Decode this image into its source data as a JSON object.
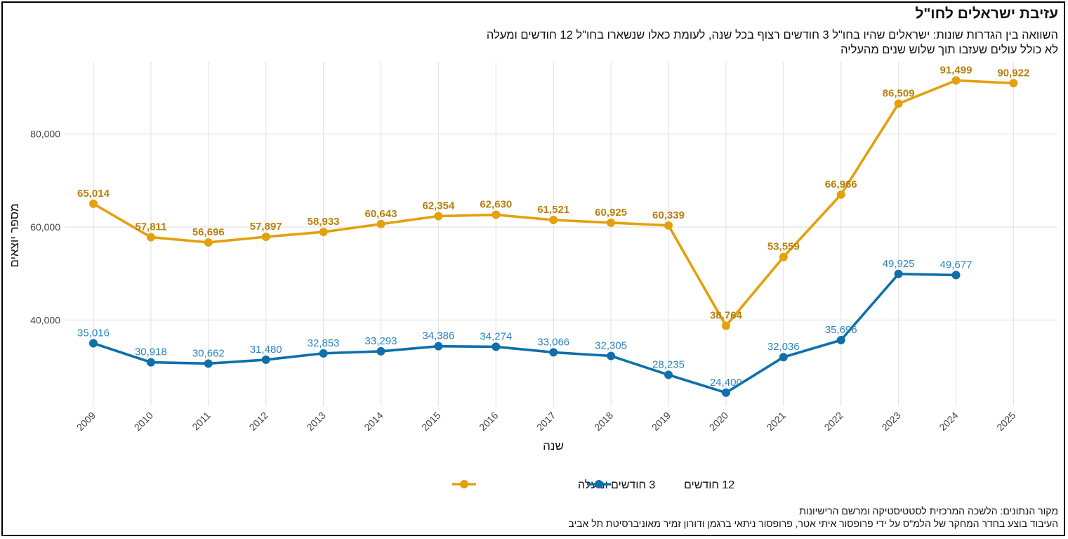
{
  "chart_data": {
    "type": "line",
    "title": "עזיבת ישראלים לחו\"ל",
    "subtitle": [
      "השוואה בין הגדרות שונות: ישראלים שהיו בחו\"ל 3 חודשים רצוף בכל שנה, לעומת כאלו שנשארו בחו\"ל 12 חודשים ומעלה",
      "לא כולל עולים שעזבו תוך שלוש שנים מהעליה"
    ],
    "xlabel": "שנה",
    "ylabel": "מספר יוצאים",
    "x": [
      2009,
      2010,
      2011,
      2012,
      2013,
      2014,
      2015,
      2016,
      2017,
      2018,
      2019,
      2020,
      2021,
      2022,
      2023,
      2024,
      2025
    ],
    "ylim": [
      21500,
      95500
    ],
    "yticks": [
      40000,
      60000,
      80000
    ],
    "ytick_labels": [
      "40,000",
      "60,000",
      "80,000"
    ],
    "grid": true,
    "legend_position": "bottom",
    "series": [
      {
        "name": "3 חודשים ומעלה",
        "color": "#E3A10E",
        "label_color": "#B8800F",
        "values": [
          65014,
          57811,
          56696,
          57897,
          58933,
          60643,
          62354,
          62630,
          61521,
          60925,
          60339,
          38764,
          53559,
          66966,
          86509,
          91499,
          90922
        ],
        "labels": [
          "65,014",
          "57,811",
          "56,696",
          "57,897",
          "58,933",
          "60,643",
          "62,354",
          "62,630",
          "61,521",
          "60,925",
          "60,339",
          "38,764",
          "53,559",
          "66,966",
          "86,509",
          "91,499",
          "90,922"
        ]
      },
      {
        "name": "12 חודשים",
        "color": "#0F6FAA",
        "label_color": "#2A86BF",
        "values": [
          35016,
          30918,
          30662,
          31480,
          32853,
          33293,
          34386,
          34274,
          33066,
          32305,
          28235,
          24400,
          32036,
          35696,
          49925,
          49677,
          null
        ],
        "labels": [
          "35,016",
          "30,918",
          "30,662",
          "31,480",
          "32,853",
          "33,293",
          "34,386",
          "34,274",
          "33,066",
          "32,305",
          "28,235",
          "24,400",
          "32,036",
          "35,696",
          "49,925",
          "49,677",
          null
        ]
      }
    ],
    "source": [
      "מקור הנתונים: הלשכה המרכזית לסטטיסטיקה ומרשם הרישיונות",
      "העיבוד בוצע בחדר המחקר של הלמ\"ס על ידי פרופסור איתי אטר, פרופסור ניתאי ברגמן ודורון זמיר מאוניברסיטת תל אביב"
    ]
  }
}
